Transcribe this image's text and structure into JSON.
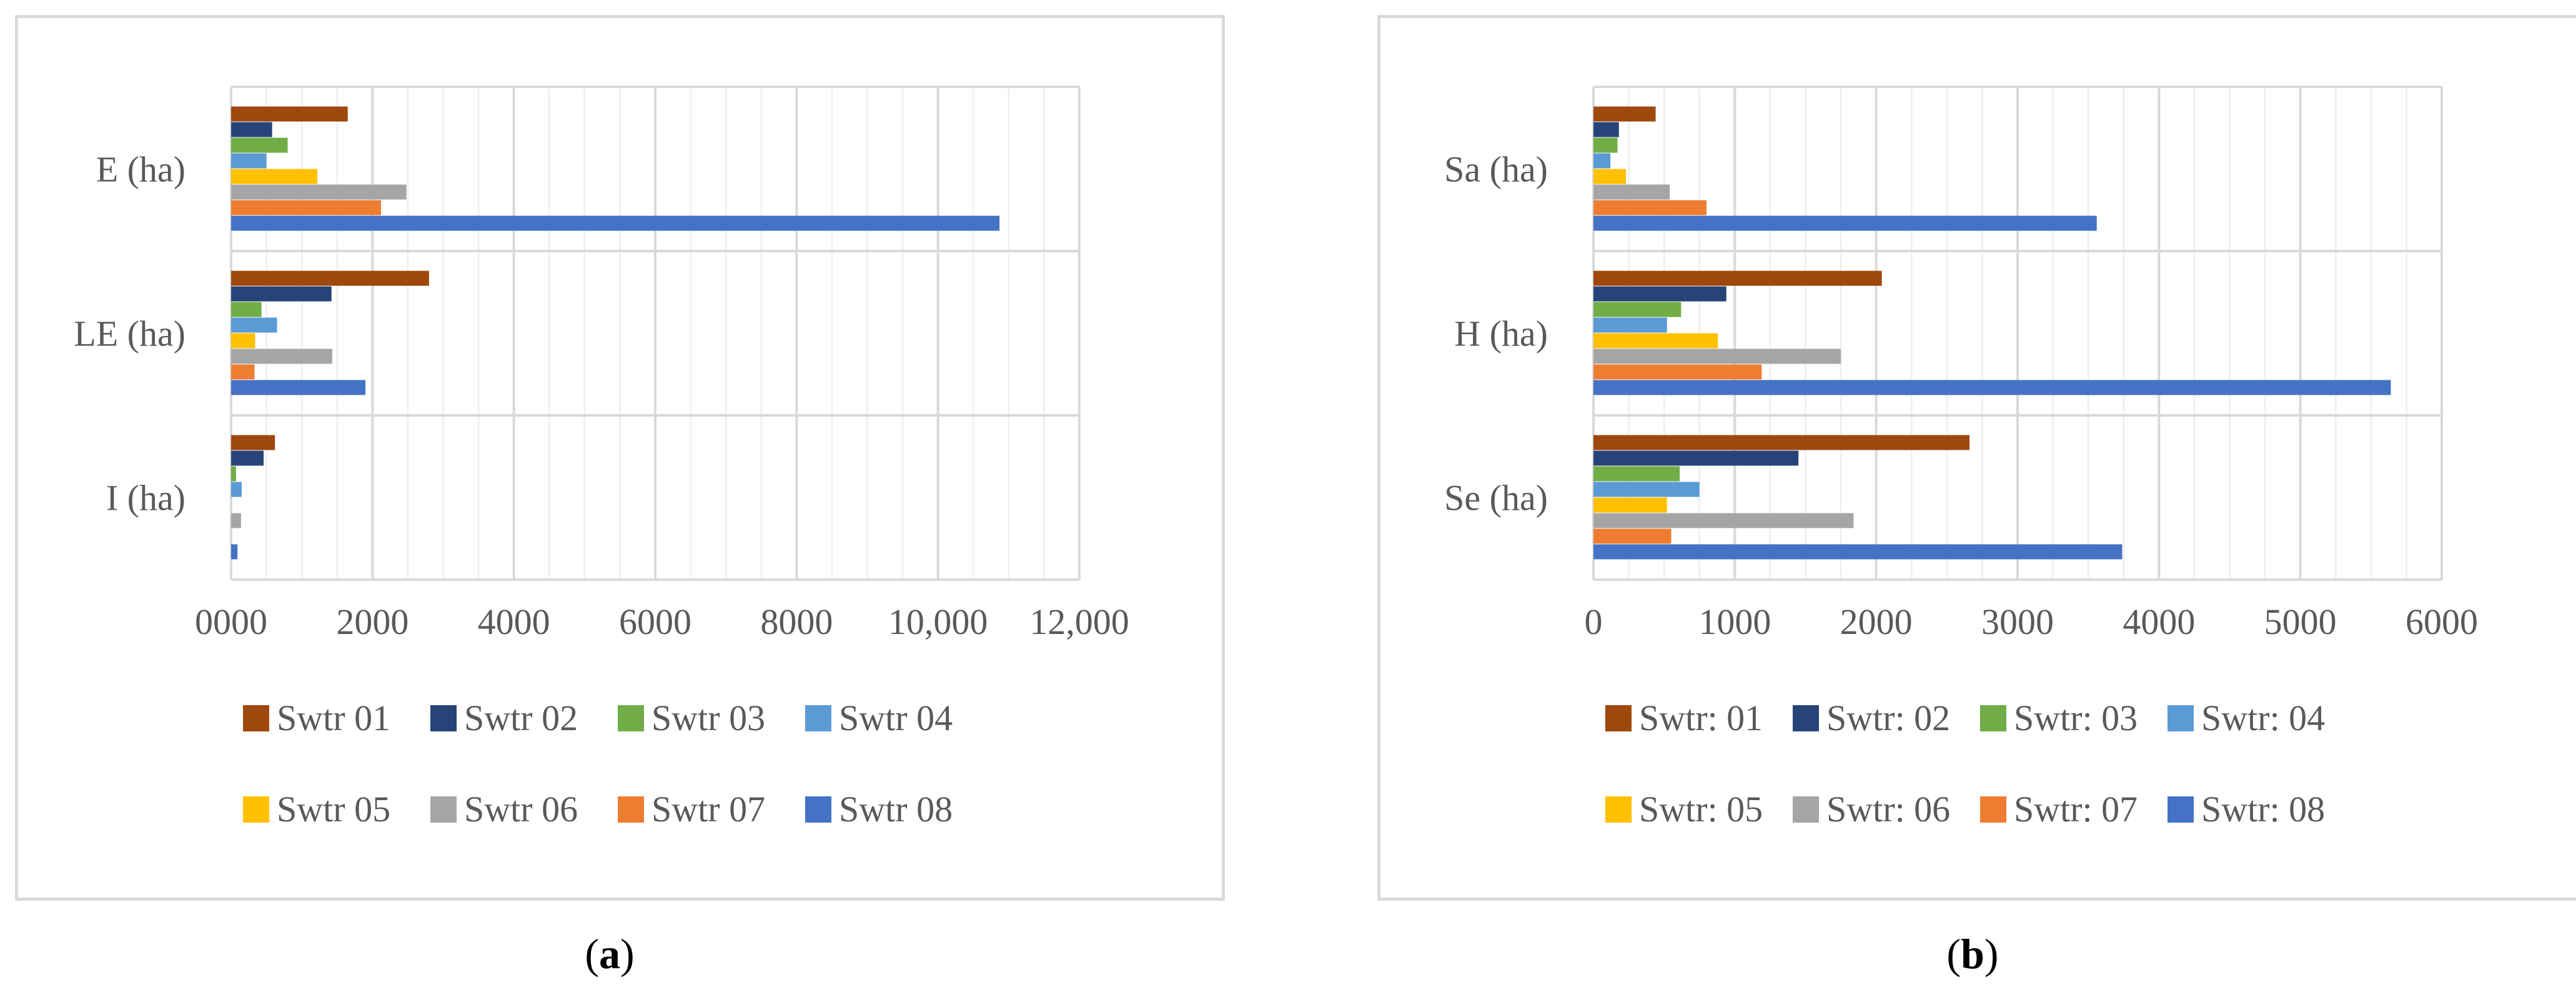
{
  "chart_data": [
    {
      "type": "bar",
      "orientation": "horizontal",
      "panel_label": "a",
      "categories": [
        "E (ha)",
        "LE (ha)",
        "I (ha)"
      ],
      "x_ticks": [
        "0000",
        "2000",
        "4000",
        "6000",
        "8000",
        "10,000",
        "12,000"
      ],
      "xlim": [
        0,
        12000
      ],
      "series": [
        {
          "name": "Swtr 01",
          "color": "#9e480e",
          "values": [
            1650,
            2800,
            620
          ]
        },
        {
          "name": "Swtr 02",
          "color": "#264478",
          "values": [
            580,
            1420,
            460
          ]
        },
        {
          "name": "Swtr 03",
          "color": "#70ad47",
          "values": [
            800,
            430,
            70
          ]
        },
        {
          "name": "Swtr 04",
          "color": "#5b9bd5",
          "values": [
            500,
            650,
            150
          ]
        },
        {
          "name": "Swtr 05",
          "color": "#ffc000",
          "values": [
            1220,
            340,
            0
          ]
        },
        {
          "name": "Swtr 06",
          "color": "#a5a5a5",
          "values": [
            2480,
            1430,
            140
          ]
        },
        {
          "name": "Swtr 07",
          "color": "#ed7d31",
          "values": [
            2120,
            330,
            0
          ]
        },
        {
          "name": "Swtr 08",
          "color": "#4472c4",
          "values": [
            10870,
            1900,
            90
          ]
        }
      ],
      "grid": true,
      "legend_position": "bottom"
    },
    {
      "type": "bar",
      "orientation": "horizontal",
      "panel_label": "b",
      "categories": [
        "Sa (ha)",
        "H (ha)",
        "Se (ha)"
      ],
      "x_ticks": [
        "0",
        "1000",
        "2000",
        "3000",
        "4000",
        "5000",
        "6000"
      ],
      "xlim": [
        0,
        6000
      ],
      "series": [
        {
          "name": "Swtr: 01",
          "color": "#9e480e",
          "values": [
            440,
            2040,
            2660
          ]
        },
        {
          "name": "Swtr: 02",
          "color": "#264478",
          "values": [
            180,
            940,
            1450
          ]
        },
        {
          "name": "Swtr: 03",
          "color": "#70ad47",
          "values": [
            170,
            620,
            610
          ]
        },
        {
          "name": "Swtr: 04",
          "color": "#5b9bd5",
          "values": [
            120,
            520,
            750
          ]
        },
        {
          "name": "Swtr: 05",
          "color": "#ffc000",
          "values": [
            230,
            880,
            520
          ]
        },
        {
          "name": "Swtr: 06",
          "color": "#a5a5a5",
          "values": [
            540,
            1750,
            1840
          ]
        },
        {
          "name": "Swtr: 07",
          "color": "#ed7d31",
          "values": [
            800,
            1190,
            550
          ]
        },
        {
          "name": "Swtr: 08",
          "color": "#4472c4",
          "values": [
            3560,
            5640,
            3740
          ]
        }
      ],
      "grid": true,
      "legend_position": "bottom"
    }
  ],
  "captions": {
    "a_open": "(",
    "a_label": "a",
    "a_close": ")",
    "b_open": "(",
    "b_label": "b",
    "b_close": ")"
  }
}
